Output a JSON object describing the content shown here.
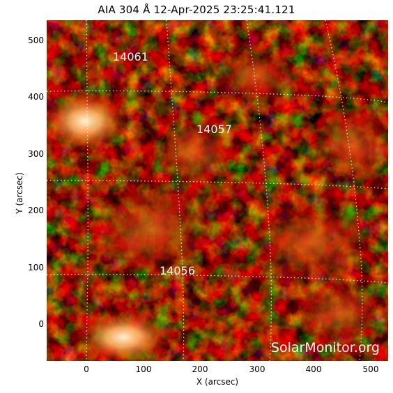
{
  "title": "AIA 304 Å 12-Apr-2025 23:25:41.121",
  "x_axis": {
    "label": "X (arcsec)",
    "ticks": [
      "0",
      "100",
      "200",
      "300",
      "400",
      "500"
    ],
    "range": [
      -70,
      530
    ]
  },
  "y_axis": {
    "label": "Y (arcsec)",
    "ticks": [
      "0",
      "100",
      "200",
      "300",
      "400",
      "500"
    ],
    "range": [
      -60,
      540
    ]
  },
  "regions": [
    "14061",
    "14057",
    "14056"
  ],
  "watermark": "SolarMonitor.org",
  "colors": {
    "background": "#1a0200",
    "emission_low": "#6b0a00",
    "emission_mid": "#c83a05",
    "emission_high": "#ffe6b4",
    "grid": "#ffffff"
  }
}
